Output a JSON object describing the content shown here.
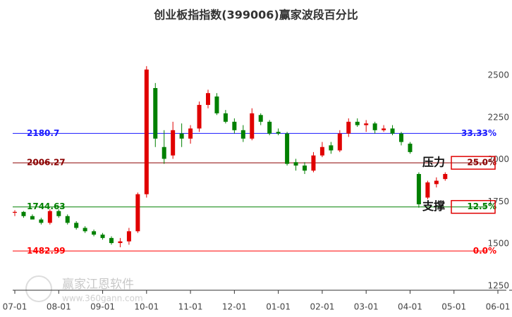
{
  "chart_data": {
    "type": "candlestick",
    "title": "创业板指指数(399006)赢家波段百分比",
    "watermark": "赢家江恩软件",
    "watermark_url": "www.360gann.com",
    "categories": [
      "07-01",
      null,
      null,
      null,
      null,
      "08-01",
      null,
      null,
      null,
      null,
      "09-01",
      null,
      null,
      null,
      null,
      "10-01",
      null,
      null,
      null,
      null,
      "11-01",
      null,
      null,
      null,
      null,
      "12-01",
      null,
      null,
      null,
      null,
      "01-01",
      null,
      null,
      null,
      null,
      "02-01",
      null,
      null,
      null,
      null,
      "03-01",
      null,
      null,
      null,
      null,
      "04-01",
      null,
      null,
      null,
      null,
      "05-01",
      null,
      null,
      null,
      null,
      "06-01",
      null,
      null,
      null,
      null
    ],
    "open": [
      1710,
      1715,
      1690,
      1670,
      1650,
      1720,
      1690,
      1650,
      1620,
      1600,
      1580,
      1560,
      1530,
      1540,
      1600,
      1820,
      2450,
      2100,
      2050,
      2180,
      2150,
      2210,
      2350,
      2400,
      2300,
      2250,
      2200,
      2150,
      2290,
      2250,
      2190,
      2180,
      2010,
      1990,
      1960,
      2050,
      2110,
      2080,
      2180,
      2250,
      2230,
      2240,
      2200,
      2210,
      2180,
      2120,
      1940,
      1800,
      1880,
      1910,
      null,
      null,
      null,
      null,
      null,
      null,
      null,
      null,
      null,
      null
    ],
    "high": [
      1725,
      1720,
      1700,
      1680,
      1730,
      1730,
      1700,
      1660,
      1630,
      1610,
      1590,
      1570,
      1560,
      1620,
      1830,
      2580,
      2480,
      2200,
      2250,
      2240,
      2230,
      2370,
      2440,
      2420,
      2320,
      2270,
      2230,
      2330,
      2300,
      2260,
      2210,
      2190,
      2030,
      2010,
      2070,
      2130,
      2130,
      2200,
      2270,
      2270,
      2260,
      2250,
      2230,
      2230,
      2190,
      2130,
      1950,
      1900,
      1920,
      1950,
      null,
      null,
      null,
      null,
      null,
      null,
      null,
      null,
      null,
      null
    ],
    "low": [
      1690,
      1680,
      1670,
      1640,
      1640,
      1680,
      1640,
      1610,
      1590,
      1570,
      1550,
      1520,
      1505,
      1520,
      1590,
      1800,
      2100,
      2000,
      2030,
      2100,
      2120,
      2190,
      2330,
      2290,
      2240,
      2180,
      2130,
      2140,
      2230,
      2170,
      2170,
      1990,
      1960,
      1940,
      1950,
      2040,
      2060,
      2070,
      2160,
      2220,
      2190,
      2180,
      2190,
      2170,
      2110,
      2060,
      1740,
      1790,
      1860,
      1900,
      null,
      null,
      null,
      null,
      null,
      null,
      null,
      null,
      null,
      null
    ],
    "close": [
      1715,
      1690,
      1670,
      1650,
      1720,
      1690,
      1650,
      1620,
      1600,
      1580,
      1560,
      1530,
      1540,
      1600,
      1820,
      2560,
      2150,
      2030,
      2200,
      2150,
      2210,
      2350,
      2420,
      2300,
      2250,
      2200,
      2150,
      2300,
      2250,
      2180,
      2180,
      2000,
      1990,
      1960,
      2050,
      2100,
      2080,
      2180,
      2250,
      2230,
      2240,
      2200,
      2210,
      2180,
      2130,
      2070,
      1760,
      1890,
      1900,
      1940,
      null,
      null,
      null,
      null,
      null,
      null,
      null,
      null,
      null,
      null
    ],
    "up_color": "#e00000",
    "down_color": "#008000",
    "ylim": [
      1250,
      2910
    ],
    "yticks": [
      1250,
      1500,
      1750,
      2000,
      2250,
      2500
    ],
    "levels": [
      {
        "value": 2180.7,
        "pct": "33.33%",
        "color": "#1a1aff"
      },
      {
        "value": 2006.27,
        "pct": "25.0%",
        "color": "#8b0000",
        "annotation": "压力"
      },
      {
        "value": 1744.63,
        "pct": "12.5%",
        "color": "#008000",
        "annotation": "支撑"
      },
      {
        "value": 1482.99,
        "pct": "0.0%",
        "color": "#ff0000"
      }
    ]
  }
}
